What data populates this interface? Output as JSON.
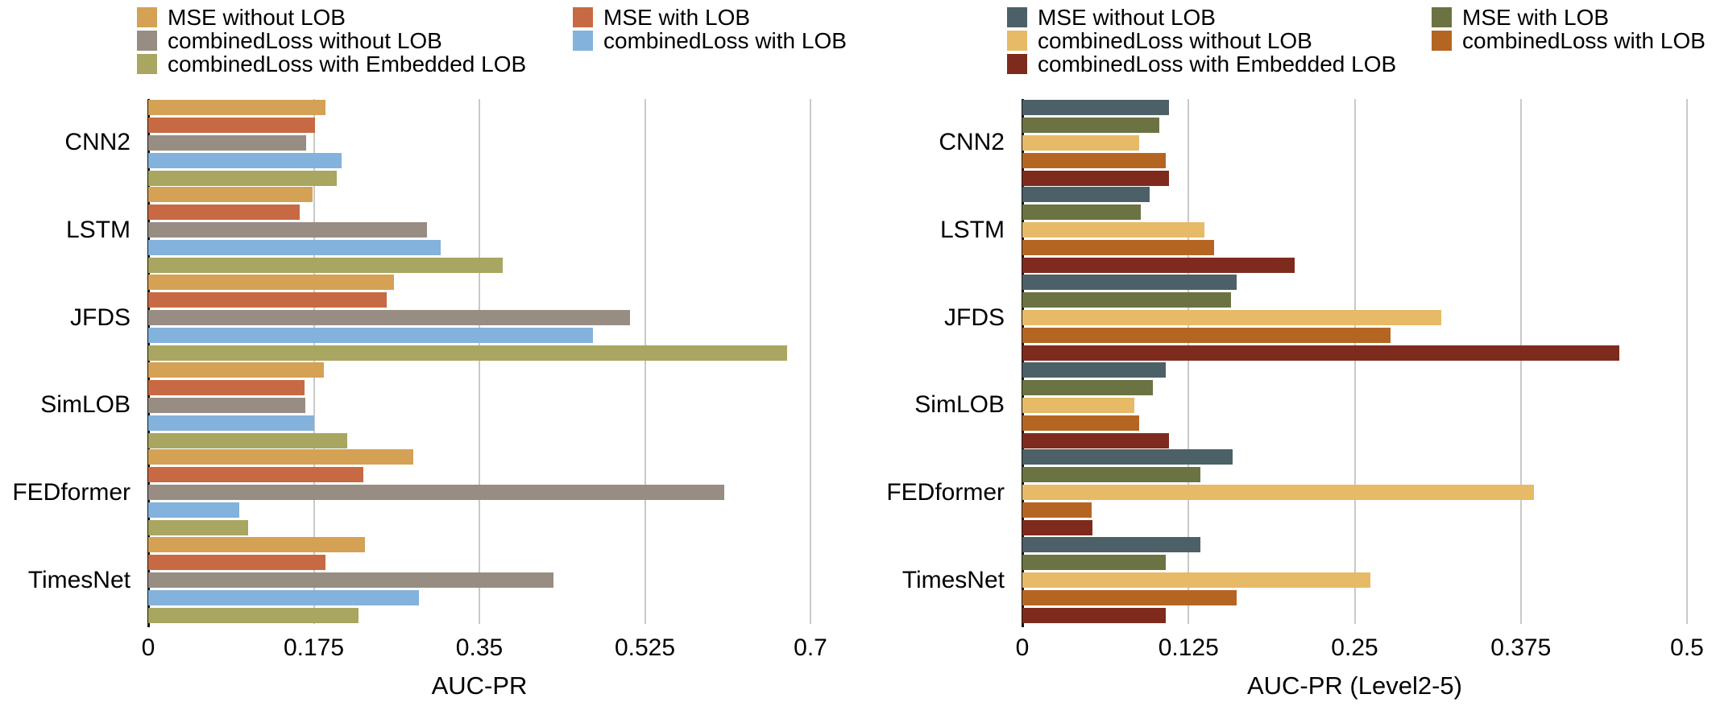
{
  "chart_data": [
    {
      "type": "bar",
      "orientation": "horizontal",
      "title": "",
      "xlabel": "AUC-PR",
      "ylabel": "",
      "categories": [
        "CNN2",
        "LSTM",
        "JFDS",
        "SimLOB",
        "FEDformer",
        "TimesNet"
      ],
      "xlim": [
        0,
        0.7
      ],
      "xtick_values": [
        0,
        0.175,
        0.35,
        0.525,
        0.7
      ],
      "xtick_labels": [
        "0",
        "0.175",
        "0.35",
        "0.525",
        "0.7"
      ],
      "grid": true,
      "legend_position": "top",
      "series": [
        {
          "name": "MSE without LOB",
          "color": "#d4a155",
          "values": [
            0.187,
            0.174,
            0.26,
            0.186,
            0.28,
            0.229
          ]
        },
        {
          "name": "MSE with LOB",
          "color": "#c76a43",
          "values": [
            0.176,
            0.16,
            0.252,
            0.165,
            0.227,
            0.187
          ]
        },
        {
          "name": "combinedLoss without LOB",
          "color": "#978d83",
          "values": [
            0.167,
            0.295,
            0.509,
            0.166,
            0.609,
            0.428
          ]
        },
        {
          "name": "combinedLoss with LOB",
          "color": "#83b2dc",
          "values": [
            0.204,
            0.309,
            0.47,
            0.175,
            0.096,
            0.286
          ]
        },
        {
          "name": "combinedLoss with Embedded LOB",
          "color": "#a8a660",
          "values": [
            0.199,
            0.375,
            0.675,
            0.21,
            0.106,
            0.222
          ]
        }
      ],
      "legend_columns": [
        [
          "MSE without LOB",
          "combinedLoss without LOB",
          "combinedLoss with Embedded LOB"
        ],
        [
          "MSE with LOB",
          "combinedLoss with LOB"
        ]
      ]
    },
    {
      "type": "bar",
      "orientation": "horizontal",
      "title": "",
      "xlabel": "AUC-PR (Level2-5)",
      "ylabel": "",
      "categories": [
        "CNN2",
        "LSTM",
        "JFDS",
        "SimLOB",
        "FEDformer",
        "TimesNet"
      ],
      "xlim": [
        0,
        0.5
      ],
      "xtick_values": [
        0,
        0.125,
        0.25,
        0.375,
        0.5
      ],
      "xtick_labels": [
        "0",
        "0.125",
        "0.25",
        "0.375",
        "0.5"
      ],
      "grid": true,
      "legend_position": "top",
      "series": [
        {
          "name": "MSE without LOB",
          "color": "#4c6067",
          "values": [
            0.11,
            0.096,
            0.161,
            0.108,
            0.158,
            0.134
          ]
        },
        {
          "name": "MSE with LOB",
          "color": "#6b7342",
          "values": [
            0.103,
            0.089,
            0.157,
            0.098,
            0.134,
            0.108
          ]
        },
        {
          "name": "combinedLoss without LOB",
          "color": "#e6ba66",
          "values": [
            0.088,
            0.137,
            0.315,
            0.084,
            0.385,
            0.262
          ]
        },
        {
          "name": "combinedLoss with LOB",
          "color": "#b56522",
          "values": [
            0.108,
            0.144,
            0.277,
            0.088,
            0.052,
            0.161
          ]
        },
        {
          "name": "combinedLoss with Embedded LOB",
          "color": "#7e2b1d",
          "values": [
            0.11,
            0.205,
            0.449,
            0.11,
            0.053,
            0.108
          ]
        }
      ],
      "legend_columns": [
        [
          "MSE without LOB",
          "combinedLoss without LOB",
          "combinedLoss with Embedded LOB"
        ],
        [
          "MSE with LOB",
          "combinedLoss with LOB"
        ]
      ]
    }
  ]
}
